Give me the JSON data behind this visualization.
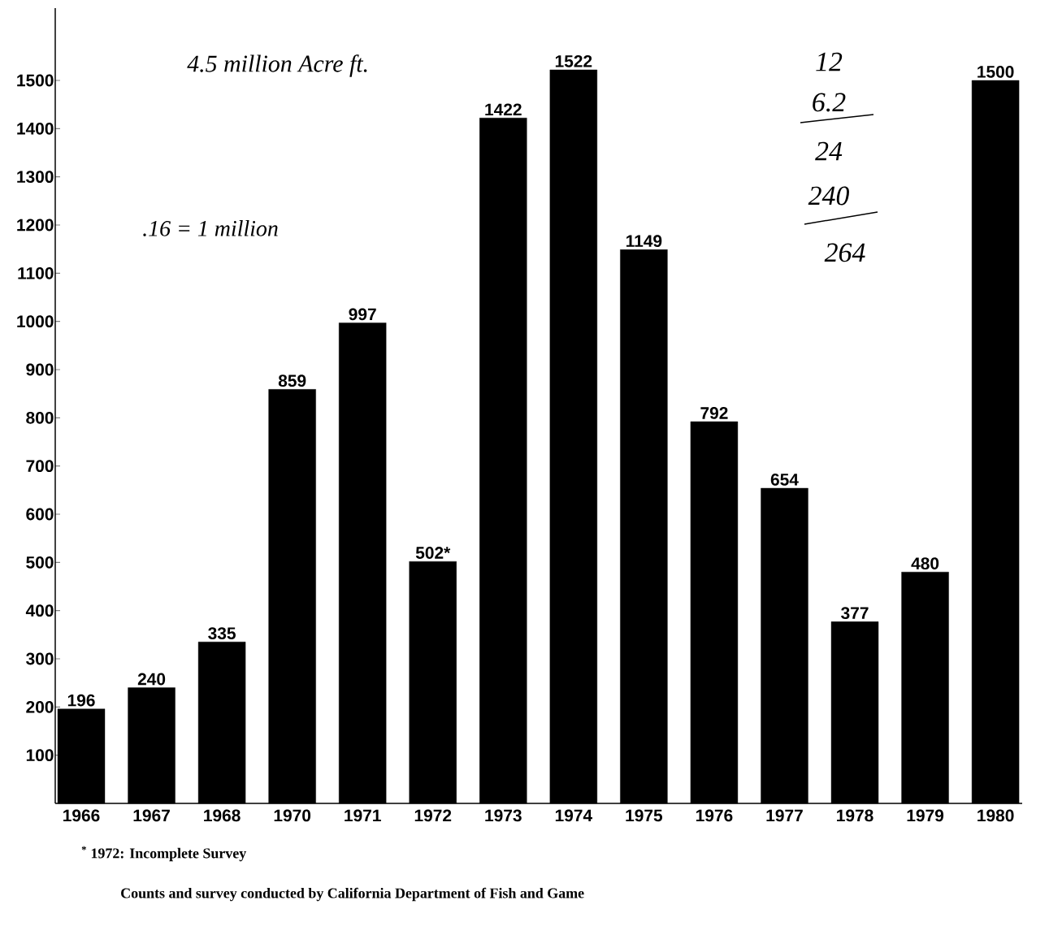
{
  "chart_data": {
    "type": "bar",
    "categories": [
      "1966",
      "1967",
      "1968",
      "1970",
      "1971",
      "1972",
      "1973",
      "1974",
      "1975",
      "1976",
      "1977",
      "1978",
      "1979",
      "1980"
    ],
    "values": [
      196,
      240,
      335,
      859,
      997,
      502,
      1422,
      1522,
      1149,
      792,
      654,
      377,
      480,
      1500
    ],
    "value_labels": [
      "196",
      "240",
      "335",
      "859",
      "997",
      "502*",
      "1422",
      "1522",
      "1149",
      "792",
      "654",
      "377",
      "480",
      "1500"
    ],
    "color": "#000000",
    "ylim": [
      0,
      1650
    ],
    "yticks": [
      100,
      200,
      300,
      400,
      500,
      600,
      700,
      800,
      900,
      1000,
      1100,
      1200,
      1300,
      1400,
      1500
    ],
    "annotations": [
      "$^{*}$ 1972: Incomplete Survey",
      "Counts and survey conducted by California Department of Fish and Game",
      "4.5 million Acre ft.",
      ".16 = 1 million",
      "12",
      "6.2",
      "24",
      "240",
      "264"
    ]
  }
}
